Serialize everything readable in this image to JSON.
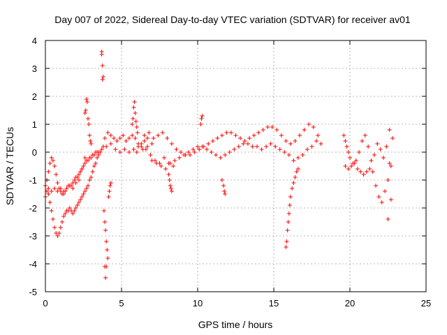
{
  "chart_data": {
    "type": "scatter",
    "title": "Day 007 of 2022, Sidereal Day-to-day VTEC variation (SDTVAR) for receiver av01",
    "xlabel": "GPS time / hours",
    "ylabel": "SDTVAR / TECUs",
    "xlim": [
      0,
      25
    ],
    "ylim": [
      -5,
      4
    ],
    "xticks": [
      0,
      5,
      10,
      15,
      20,
      25
    ],
    "yticks": [
      -5,
      -4,
      -3,
      -2,
      -1,
      0,
      1,
      2,
      3,
      4
    ],
    "grid": true,
    "marker": "+",
    "color": "#ff0000",
    "series": [
      {
        "name": "SDTVAR",
        "x": [
          0.0,
          0.1,
          0.2,
          0.3,
          0.4,
          0.5,
          0.6,
          0.7,
          0.8,
          0.9,
          1.0,
          1.1,
          1.2,
          1.3,
          1.4,
          1.5,
          1.6,
          1.7,
          1.8,
          1.9,
          2.0,
          2.1,
          2.2,
          2.3,
          2.4,
          2.5,
          2.6,
          2.7,
          2.8,
          2.9,
          3.0,
          3.1,
          3.2,
          3.3,
          3.4,
          3.5,
          0.0,
          0.1,
          0.2,
          0.3,
          0.4,
          0.5,
          0.6,
          0.7,
          0.8,
          0.9,
          1.0,
          1.1,
          1.2,
          1.3,
          1.4,
          1.5,
          1.6,
          1.7,
          1.8,
          1.9,
          2.0,
          2.1,
          2.2,
          2.3,
          2.4,
          2.5,
          2.6,
          2.7,
          2.8,
          2.9,
          3.0,
          3.1,
          3.2,
          3.3,
          3.4,
          3.5,
          3.6,
          3.7,
          3.8,
          0.2,
          0.4,
          0.6,
          0.8,
          1.0,
          1.2,
          1.4,
          1.6,
          1.8,
          2.0,
          2.2,
          2.4,
          2.6,
          2.6,
          2.65,
          2.7,
          2.75,
          2.8,
          2.85,
          2.9,
          2.95,
          3.0,
          3.7,
          3.7,
          3.75,
          3.8,
          3.75,
          3.85,
          3.9,
          3.95,
          4.0,
          4.05,
          4.1,
          4.0,
          3.95,
          3.9,
          4.15,
          4.2,
          4.25,
          4.3,
          3.9,
          4.1,
          4.3,
          4.5,
          4.7,
          4.9,
          5.1,
          5.3,
          5.5,
          5.7,
          5.9,
          6.1,
          6.3,
          6.5,
          6.7,
          4.0,
          4.3,
          4.6,
          4.9,
          5.2,
          5.5,
          5.8,
          6.1,
          6.4,
          6.7,
          7.0,
          5.7,
          5.75,
          5.8,
          5.85,
          5.9,
          5.95,
          6.0,
          6.05,
          6.0,
          6.3,
          6.6,
          6.9,
          7.2,
          7.5,
          7.8,
          8.1,
          8.4,
          6.5,
          6.8,
          7.1,
          7.4,
          7.7,
          8.0,
          8.3,
          8.6,
          8.9,
          9.2,
          9.5,
          9.8,
          10.1,
          10.4,
          10.7,
          11.0,
          11.3,
          11.6,
          11.9,
          12.2,
          12.5,
          12.8,
          13.1,
          13.4,
          13.7,
          14.0,
          14.3,
          14.6,
          14.9,
          15.2,
          15.5,
          15.8,
          16.1,
          16.4,
          16.7,
          17.0,
          17.3,
          17.6,
          17.9,
          7.0,
          7.3,
          7.6,
          7.9,
          8.2,
          8.5,
          8.8,
          9.1,
          9.4,
          9.7,
          10.0,
          10.3,
          10.6,
          10.9,
          11.2,
          11.5,
          11.8,
          12.1,
          12.4,
          12.7,
          13.0,
          13.3,
          13.6,
          13.9,
          14.2,
          14.5,
          14.8,
          15.1,
          15.4,
          15.7,
          16.0,
          16.3,
          16.6,
          16.9,
          17.2,
          17.5,
          17.8,
          18.1,
          8.1,
          8.15,
          8.2,
          8.25,
          8.3,
          10.2,
          10.25,
          10.3,
          11.6,
          11.7,
          11.75,
          11.8,
          15.8,
          15.85,
          15.9,
          15.95,
          16.0,
          16.05,
          16.1,
          16.2,
          16.3,
          16.4,
          16.5,
          16.6,
          19.6,
          19.7,
          19.8,
          19.9,
          20.0,
          20.2,
          20.4,
          20.6,
          20.8,
          21.0,
          21.2,
          21.4,
          21.6,
          21.8,
          22.0,
          22.2,
          22.4,
          22.6,
          22.8,
          19.7,
          19.9,
          20.1,
          20.3,
          20.5,
          20.7,
          20.9,
          21.1,
          21.3,
          21.5,
          21.7,
          21.9,
          22.1,
          22.3,
          22.5,
          22.7,
          22.5,
          22.7,
          22.6
        ],
        "y": [
          -1.2,
          -1.0,
          -0.7,
          -0.4,
          -0.2,
          -0.3,
          -0.5,
          -0.8,
          -1.1,
          -1.3,
          -1.4,
          -1.5,
          -1.5,
          -1.4,
          -1.3,
          -1.2,
          -1.2,
          -1.2,
          -1.1,
          -1.0,
          -0.9,
          -0.9,
          -0.8,
          -0.7,
          -0.6,
          -0.5,
          -0.4,
          -0.3,
          -0.3,
          -0.2,
          -0.2,
          -0.1,
          -0.1,
          0.0,
          0.0,
          0.0,
          -1.6,
          -1.4,
          -1.5,
          -1.8,
          -2.1,
          -2.4,
          -2.7,
          -2.9,
          -3.0,
          -2.9,
          -2.7,
          -2.5,
          -2.3,
          -2.2,
          -2.1,
          -2.1,
          -2.0,
          -2.1,
          -2.2,
          -2.1,
          -2.0,
          -1.9,
          -1.8,
          -1.7,
          -1.6,
          -1.5,
          -1.4,
          -1.3,
          -1.2,
          -1.0,
          -0.9,
          -0.7,
          -0.5,
          -0.4,
          -0.2,
          -0.1,
          0.0,
          0.1,
          0.2,
          -1.3,
          -1.4,
          -1.3,
          -1.4,
          -1.3,
          -1.4,
          -1.3,
          -1.2,
          -1.3,
          -1.1,
          -1.0,
          -0.6,
          -0.2,
          1.4,
          1.5,
          1.9,
          1.8,
          1.2,
          1.0,
          0.6,
          0.4,
          0.3,
          3.6,
          3.5,
          3.1,
          2.7,
          2.6,
          -2.1,
          -2.5,
          -2.8,
          -3.2,
          -3.5,
          -3.8,
          -4.1,
          -4.5,
          -4.1,
          -1.6,
          -1.4,
          -1.2,
          -1.1,
          0.5,
          0.7,
          0.6,
          0.5,
          0.4,
          0.5,
          0.6,
          0.4,
          0.5,
          0.6,
          0.5,
          0.3,
          0.3,
          0.4,
          0.5,
          0.2,
          0.3,
          0.1,
          0.0,
          0.1,
          0.0,
          0.1,
          0.2,
          0.1,
          0.2,
          0.3,
          1.0,
          1.2,
          1.6,
          1.8,
          1.4,
          1.1,
          0.9,
          0.7,
          0.0,
          0.2,
          0.1,
          -0.1,
          -0.3,
          -0.4,
          -0.2,
          -0.4,
          -0.5,
          0.6,
          0.7,
          0.5,
          0.6,
          0.7,
          0.5,
          0.3,
          0.1,
          0.0,
          -0.1,
          -0.1,
          0.0,
          0.1,
          0.2,
          0.3,
          0.4,
          0.5,
          0.6,
          0.7,
          0.7,
          0.6,
          0.5,
          0.4,
          0.5,
          0.6,
          0.7,
          0.8,
          0.9,
          0.9,
          0.8,
          0.6,
          0.4,
          0.3,
          0.4,
          0.6,
          0.8,
          1.0,
          0.9,
          0.6,
          -0.3,
          -0.4,
          -0.5,
          -0.6,
          -0.4,
          -0.3,
          -0.2,
          -0.1,
          0.0,
          0.1,
          0.2,
          0.2,
          0.1,
          0.0,
          -0.1,
          -0.2,
          -0.1,
          0.0,
          0.1,
          0.2,
          0.3,
          0.3,
          0.2,
          0.2,
          0.1,
          0.2,
          0.3,
          0.2,
          0.1,
          0.0,
          -0.1,
          -0.3,
          -0.2,
          -0.1,
          0.1,
          0.2,
          0.4,
          0.3,
          -0.8,
          -1.0,
          -1.2,
          -1.3,
          -1.4,
          1.0,
          1.2,
          1.3,
          -1.0,
          -1.2,
          -1.4,
          -1.5,
          -3.4,
          -3.2,
          -2.8,
          -2.5,
          -2.2,
          -1.9,
          -1.6,
          -1.3,
          -1.1,
          -0.9,
          -0.7,
          -0.6,
          0.6,
          0.4,
          0.2,
          0.0,
          -0.2,
          -0.4,
          -0.3,
          0.0,
          0.4,
          0.6,
          0.2,
          -0.3,
          -0.1,
          0.3,
          0.1,
          -0.2,
          0.2,
          -0.4,
          0.5,
          -0.5,
          -0.6,
          -0.5,
          -0.4,
          -0.6,
          -0.7,
          -0.8,
          -0.7,
          -0.6,
          -0.7,
          -1.2,
          -1.6,
          -1.8,
          -1.4,
          -1.0,
          -0.5,
          -2.4,
          -1.7,
          0.8
        ]
      }
    ]
  }
}
